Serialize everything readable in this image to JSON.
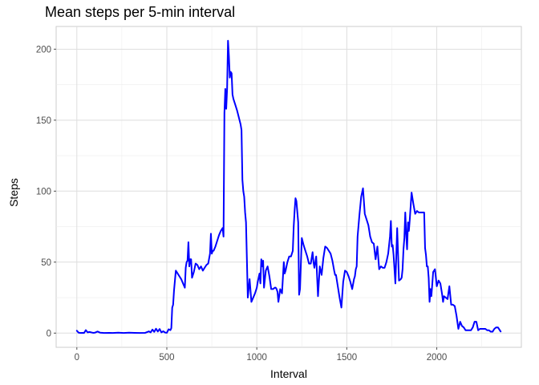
{
  "chart_data": {
    "type": "line",
    "title": "Mean steps per 5-min interval",
    "xlabel": "Interval",
    "ylabel": "Steps",
    "xlim": [
      -115,
      2470
    ],
    "ylim": [
      -10,
      216
    ],
    "x_ticks": [
      0,
      500,
      1000,
      1500,
      2000
    ],
    "y_ticks": [
      0,
      50,
      100,
      150,
      200
    ],
    "x_tick_labels": [
      "0",
      "500",
      "1000",
      "1500",
      "2000"
    ],
    "y_tick_labels": [
      "0",
      "50",
      "100",
      "150",
      "200"
    ],
    "grid": true,
    "series": [
      {
        "color": "#0000ff",
        "x": [
          0,
          10,
          20,
          30,
          40,
          50,
          60,
          70,
          90,
          100,
          115,
          130,
          150,
          180,
          200,
          230,
          260,
          290,
          320,
          350,
          380,
          400,
          410,
          420,
          430,
          440,
          450,
          460,
          470,
          480,
          490,
          500,
          510,
          520,
          525,
          530,
          535,
          540,
          550,
          560,
          570,
          580,
          590,
          600,
          605,
          610,
          615,
          620,
          625,
          630,
          635,
          640,
          650,
          660,
          670,
          680,
          690,
          700,
          710,
          720,
          730,
          740,
          745,
          750,
          755,
          760,
          770,
          780,
          790,
          800,
          810,
          815,
          820,
          825,
          830,
          835,
          840,
          845,
          850,
          855,
          860,
          865,
          870,
          880,
          890,
          900,
          910,
          915,
          920,
          925,
          930,
          935,
          940,
          950,
          960,
          970,
          980,
          990,
          1000,
          1005,
          1010,
          1015,
          1020,
          1025,
          1030,
          1035,
          1040,
          1050,
          1060,
          1070,
          1080,
          1090,
          1100,
          1105,
          1110,
          1115,
          1120,
          1130,
          1140,
          1150,
          1155,
          1160,
          1170,
          1180,
          1190,
          1200,
          1205,
          1210,
          1215,
          1220,
          1230,
          1235,
          1240,
          1250,
          1260,
          1270,
          1280,
          1290,
          1300,
          1310,
          1315,
          1320,
          1330,
          1340,
          1350,
          1360,
          1370,
          1380,
          1390,
          1400,
          1410,
          1420,
          1430,
          1435,
          1440,
          1450,
          1460,
          1470,
          1480,
          1490,
          1500,
          1510,
          1520,
          1530,
          1540,
          1545,
          1550,
          1555,
          1560,
          1570,
          1580,
          1590,
          1600,
          1610,
          1620,
          1625,
          1630,
          1640,
          1650,
          1660,
          1670,
          1680,
          1690,
          1700,
          1705,
          1710,
          1720,
          1730,
          1740,
          1745,
          1750,
          1755,
          1760,
          1770,
          1780,
          1790,
          1800,
          1805,
          1810,
          1815,
          1820,
          1825,
          1830,
          1835,
          1840,
          1845,
          1850,
          1860,
          1870,
          1880,
          1890,
          1900,
          1910,
          1920,
          1930,
          1935,
          1940,
          1945,
          1950,
          1955,
          1960,
          1965,
          1970,
          1980,
          1990,
          2000,
          2010,
          2020,
          2030,
          2035,
          2040,
          2050,
          2060,
          2070,
          2080,
          2090,
          2100,
          2110,
          2120,
          2130,
          2140,
          2150,
          2160,
          2170,
          2180,
          2190,
          2200,
          2210,
          2220,
          2230,
          2240,
          2250,
          2260,
          2270,
          2280,
          2290,
          2300,
          2310,
          2320,
          2330,
          2340,
          2355
        ],
        "y": [
          1.7,
          0.3,
          0.1,
          0.2,
          0.1,
          2.1,
          0.5,
          0.8,
          0.2,
          0.3,
          1.1,
          0.3,
          0.1,
          0.2,
          0.1,
          0.3,
          0.1,
          0.3,
          0.2,
          0.1,
          0.2,
          1.2,
          0.5,
          2.5,
          0.9,
          3.1,
          1.1,
          2.9,
          0.5,
          1.3,
          0.4,
          0.2,
          2.7,
          2.1,
          3.5,
          18,
          20,
          30,
          44,
          42,
          40,
          38,
          35,
          32,
          46,
          50,
          51,
          64,
          47,
          52,
          52,
          39,
          43,
          49,
          48,
          45,
          47,
          44,
          46,
          48,
          49,
          56,
          70,
          56,
          58,
          58,
          61,
          65,
          69,
          72,
          74,
          68,
          155,
          172,
          158,
          172,
          206,
          195,
          180,
          184,
          183,
          168,
          165,
          161,
          157,
          152,
          147,
          143,
          108,
          100,
          96,
          85,
          78,
          25,
          38,
          22,
          25,
          28,
          32,
          36,
          39,
          42,
          35,
          52,
          47,
          51,
          32,
          44,
          47,
          40,
          31,
          31,
          32,
          32,
          31,
          29,
          22,
          31,
          28,
          50,
          42,
          44,
          50,
          54,
          54,
          58,
          75,
          86,
          95,
          93,
          78,
          27,
          31,
          67,
          62,
          58,
          54,
          49,
          49,
          57,
          50,
          46,
          54,
          26,
          47,
          41,
          53,
          61,
          60,
          58,
          56,
          51,
          44,
          41,
          41,
          33,
          25,
          18,
          36,
          44,
          43,
          40,
          36,
          31,
          38,
          40,
          45,
          47,
          68,
          83,
          96,
          102,
          84,
          80,
          76,
          72,
          68,
          64,
          63,
          52,
          61,
          45,
          47,
          46,
          46,
          46,
          50,
          56,
          68,
          79,
          61,
          62,
          55,
          35,
          74,
          37,
          38,
          39,
          45,
          59,
          67,
          85,
          70,
          59,
          78,
          72,
          80,
          99,
          91,
          84,
          86,
          85,
          85,
          85,
          85,
          60,
          55,
          47,
          47,
          39,
          22,
          31,
          26,
          43,
          45,
          33,
          37,
          35,
          27,
          22,
          26,
          25,
          24,
          33,
          20,
          20,
          19,
          12,
          3,
          8,
          5,
          4,
          2,
          2,
          2,
          2,
          4,
          8,
          8,
          2,
          3,
          3,
          3,
          3,
          2,
          2,
          1,
          1,
          3,
          4,
          4,
          1.1
        ]
      }
    ]
  }
}
